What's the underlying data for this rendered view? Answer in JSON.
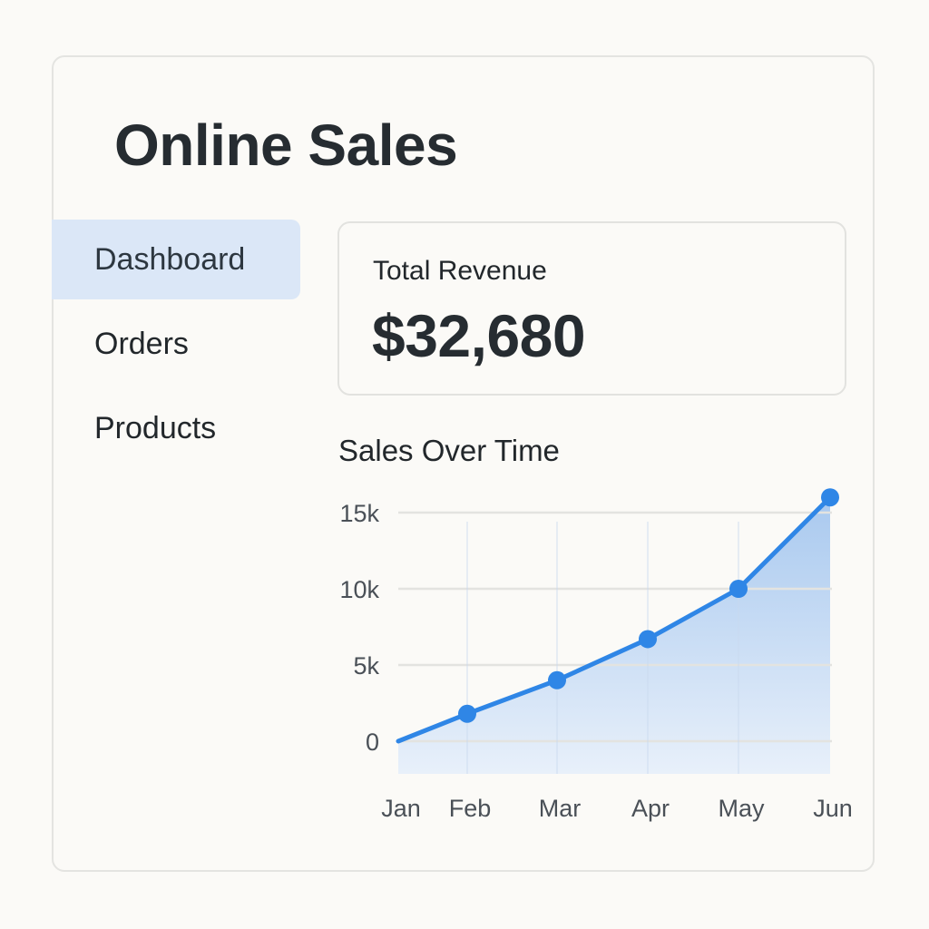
{
  "app": {
    "title": "Online Sales"
  },
  "sidebar": {
    "items": [
      {
        "label": "Dashboard",
        "active": true
      },
      {
        "label": "Orders",
        "active": false
      },
      {
        "label": "Products",
        "active": false
      }
    ]
  },
  "revenue": {
    "label": "Total Revenue",
    "value": "$32,680"
  },
  "colors": {
    "accent": "#2f86e6",
    "active_nav_bg": "#dbe7f7",
    "area_fill_top": "#a9c9ef",
    "area_fill_bottom": "#e8f0fa",
    "gridline": "#e3e3e0"
  },
  "chart_data": {
    "type": "area",
    "title": "Sales Over Time",
    "categories": [
      "Jan",
      "Feb",
      "Mar",
      "Apr",
      "May",
      "Jun"
    ],
    "series": [
      {
        "values": [
          0,
          1800,
          4000,
          6700,
          10000,
          16000
        ]
      }
    ],
    "y_ticks": [
      {
        "value": 0,
        "label": "0"
      },
      {
        "value": 5000,
        "label": "5k"
      },
      {
        "value": 10000,
        "label": "10k"
      },
      {
        "value": 15000,
        "label": "15k"
      }
    ],
    "ylim": [
      0,
      15000
    ],
    "grid": true,
    "xlabel": "",
    "ylabel": ""
  }
}
